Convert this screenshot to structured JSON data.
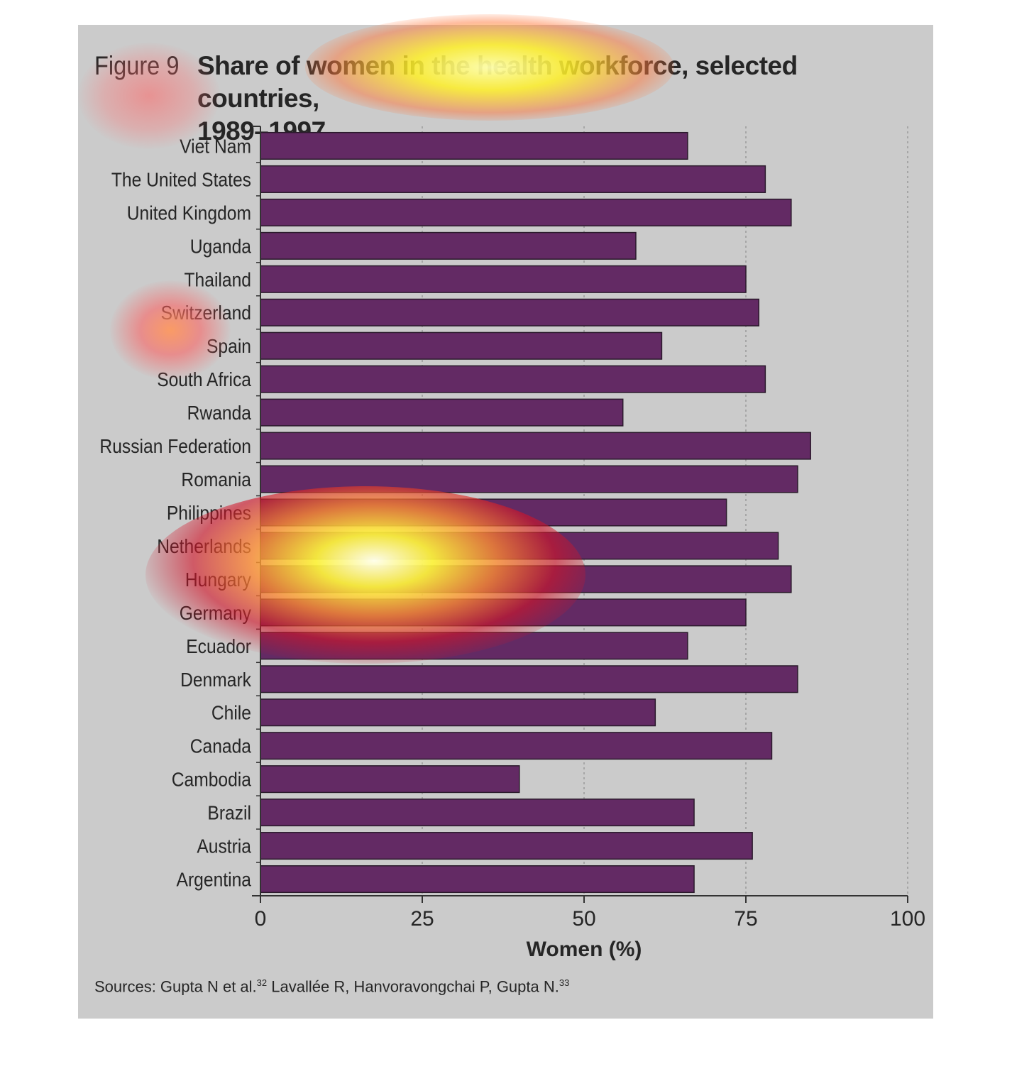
{
  "figure": {
    "label": "Figure 9",
    "title_line1": "Share of women in the health workforce, selected countries,",
    "title_line2": "1989–1997",
    "sources_prefix": "Sources: Gupta N et al.",
    "sources_ref1": "32",
    "sources_middle": " Lavallée R, Hanvoravongchai P, Gupta N.",
    "sources_ref2": "33"
  },
  "colors": {
    "panel_bg": "#cbcbcb",
    "bar_fill": "#632a64",
    "bar_stroke": "#2a1a2b",
    "text": "#262626",
    "grid": "#9a9a9a"
  },
  "chart_data": {
    "type": "bar",
    "orientation": "horizontal",
    "title": "Share of women in the health workforce, selected countries, 1989–1997",
    "xlabel": "Women (%)",
    "ylabel": "",
    "xlim": [
      0,
      100
    ],
    "xticks": [
      0,
      25,
      50,
      75,
      100
    ],
    "grid": "vertical dotted",
    "categories": [
      "Viet Nam",
      "The United States",
      "United Kingdom",
      "Uganda",
      "Thailand",
      "Switzerland",
      "Spain",
      "South Africa",
      "Rwanda",
      "Russian Federation",
      "Romania",
      "Philippines",
      "Netherlands",
      "Hungary",
      "Germany",
      "Ecuador",
      "Denmark",
      "Chile",
      "Canada",
      "Cambodia",
      "Brazil",
      "Austria",
      "Argentina"
    ],
    "values": [
      66,
      78,
      82,
      58,
      75,
      77,
      62,
      78,
      56,
      85,
      83,
      72,
      80,
      82,
      75,
      66,
      83,
      61,
      79,
      40,
      67,
      76,
      67
    ]
  }
}
